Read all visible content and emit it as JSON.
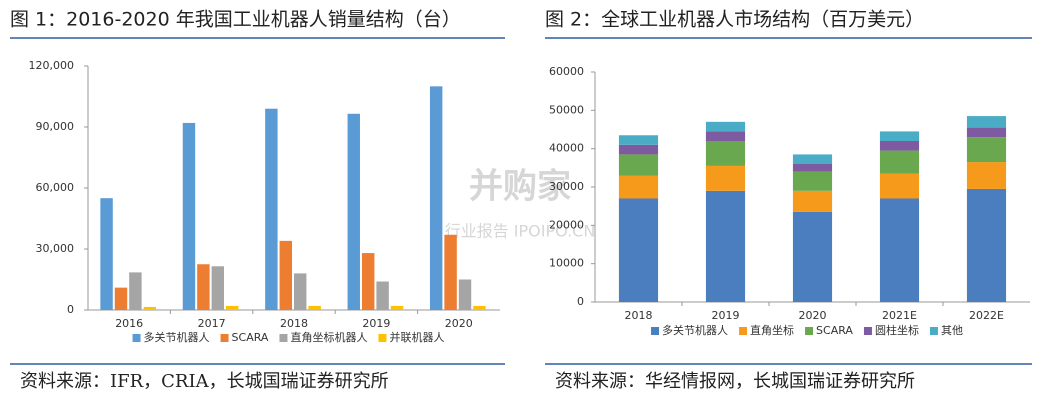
{
  "chart_data": [
    {
      "type": "bar",
      "title": "图 1：2016-2020 年我国工业机器人销量结构（台）",
      "source": "资料来源：IFR，CRIA，长城国瑞证券研究所",
      "categories": [
        "2016",
        "2017",
        "2018",
        "2019",
        "2020"
      ],
      "series": [
        {
          "name": "多关节机器人",
          "color": "#5b9bd5",
          "values": [
            55000,
            92000,
            99000,
            96500,
            110000
          ]
        },
        {
          "name": "SCARA",
          "color": "#ed7d31",
          "values": [
            11000,
            22500,
            34000,
            28000,
            37000
          ]
        },
        {
          "name": "直角坐标机器人",
          "color": "#a5a5a5",
          "values": [
            18500,
            21500,
            18000,
            14000,
            15000
          ]
        },
        {
          "name": "并联机器人",
          "color": "#ffc000",
          "values": [
            1500,
            2000,
            2000,
            2000,
            2000
          ]
        }
      ],
      "ylim": [
        0,
        120000
      ],
      "yticks": [
        0,
        {
          "value": 30000,
          "label": "30,000"
        },
        {
          "value": 60000,
          "label": "60,000"
        },
        {
          "value": 90000,
          "label": "90,000"
        },
        {
          "value": 120000,
          "label": "120,000"
        }
      ],
      "stacked": false,
      "legend": "bottom"
    },
    {
      "type": "bar",
      "title": "图 2：全球工业机器人市场结构（百万美元）",
      "source": "资料来源：华经情报网，长城国瑞证券研究所",
      "categories": [
        "2018",
        "2019",
        "2020",
        "2021E",
        "2022E"
      ],
      "series": [
        {
          "name": "多关节机器人",
          "color": "#4a7ebf",
          "values": [
            27000,
            29000,
            23500,
            27000,
            29500
          ]
        },
        {
          "name": "直角坐标",
          "color": "#f59a1b",
          "values": [
            6000,
            6500,
            5500,
            6500,
            7000
          ]
        },
        {
          "name": "SCARA",
          "color": "#6aa84f",
          "values": [
            5500,
            6500,
            5000,
            6000,
            6500
          ]
        },
        {
          "name": "圆柱坐标",
          "color": "#7e5ba0",
          "values": [
            2500,
            2500,
            2000,
            2500,
            2500
          ]
        },
        {
          "name": "其他",
          "color": "#4bacc6",
          "values": [
            2500,
            2500,
            2500,
            2500,
            3000
          ]
        }
      ],
      "ylim": [
        0,
        60000
      ],
      "yticks": [
        0,
        10000,
        20000,
        30000,
        40000,
        50000,
        60000
      ],
      "stacked": true,
      "legend": "bottom"
    }
  ],
  "watermark": {
    "logo": "并购家",
    "text": "行业报告 IPOIPO.CN"
  }
}
